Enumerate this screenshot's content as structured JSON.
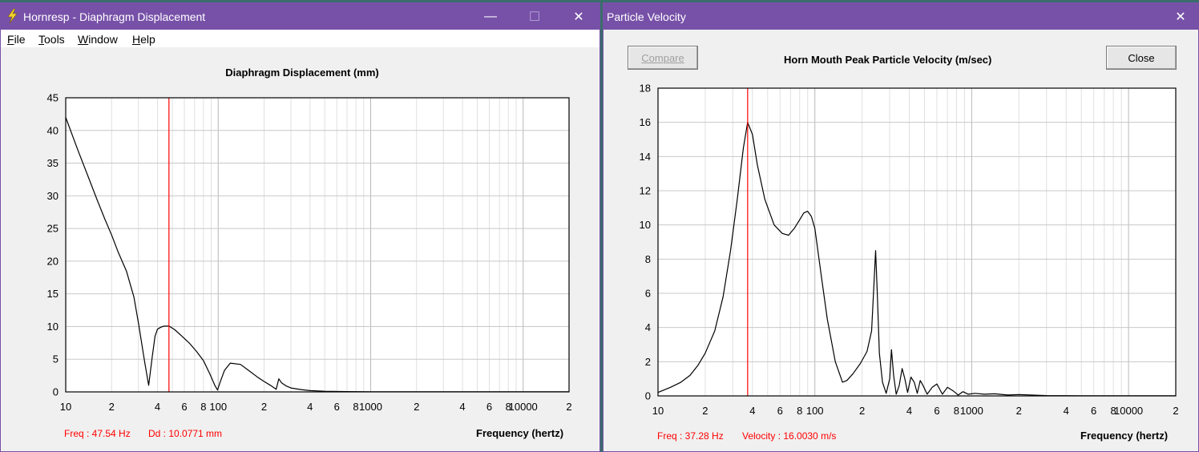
{
  "left_window": {
    "title": "Hornresp - Diaphragm Displacement",
    "controls": {
      "minimize": "—",
      "maximize": "☐",
      "close": "✕"
    },
    "menu": [
      {
        "label": "File",
        "mnemonic": "F",
        "rest": "ile"
      },
      {
        "label": "Tools",
        "mnemonic": "T",
        "rest": "ools"
      },
      {
        "label": "Window",
        "mnemonic": "W",
        "rest": "indow"
      },
      {
        "label": "Help",
        "mnemonic": "H",
        "rest": "elp"
      }
    ],
    "readout": {
      "freq": "Freq : 47.54 Hz",
      "value": "Dd : 10.0771 mm"
    },
    "x_axis_label": "Frequency (hertz)"
  },
  "right_window": {
    "title": "Particle Velocity",
    "controls": {
      "close": "✕"
    },
    "compare_label": "Compare",
    "close_label": "Close",
    "readout": {
      "freq": "Freq : 37.28 Hz",
      "value": "Velocity : 16.0030 m/s"
    },
    "x_axis_label": "Frequency (hertz)"
  },
  "chart_data": [
    {
      "type": "line",
      "title": "Diaphragm Displacement (mm)",
      "xlabel": "Frequency (hertz)",
      "ylabel": "Diaphragm Displacement (mm)",
      "xscale": "log",
      "xlim": [
        10,
        20000
      ],
      "ylim": [
        0,
        45
      ],
      "yticks": [
        "0",
        "5",
        "10",
        "15",
        "20",
        "25",
        "30",
        "35",
        "40",
        "45"
      ],
      "xtick_labels": [
        {
          "f": 10,
          "label": "10"
        },
        {
          "f": 20,
          "label": "2"
        },
        {
          "f": 40,
          "label": "4"
        },
        {
          "f": 60,
          "label": "6"
        },
        {
          "f": 80,
          "label": "8"
        },
        {
          "f": 100,
          "label": "100"
        },
        {
          "f": 200,
          "label": "2"
        },
        {
          "f": 400,
          "label": "4"
        },
        {
          "f": 600,
          "label": "6"
        },
        {
          "f": 800,
          "label": "8"
        },
        {
          "f": 1000,
          "label": "1000"
        },
        {
          "f": 2000,
          "label": "2"
        },
        {
          "f": 4000,
          "label": "4"
        },
        {
          "f": 6000,
          "label": "6"
        },
        {
          "f": 8000,
          "label": "8"
        },
        {
          "f": 10000,
          "label": "10000"
        },
        {
          "f": 20000,
          "label": "2"
        }
      ],
      "marker_freq": 47.54,
      "series": [
        {
          "name": "Dd",
          "x": [
            10,
            12,
            14,
            16,
            18,
            20,
            22,
            25,
            28,
            30,
            33,
            35,
            37,
            38.5,
            40,
            42,
            44,
            47.54,
            52,
            58,
            65,
            72,
            80,
            88,
            95,
            99,
            103,
            110,
            120,
            140,
            160,
            180,
            200,
            220,
            240,
            250,
            260,
            280,
            300,
            350,
            400,
            500,
            700,
            1000,
            2000,
            5000,
            10000,
            20000
          ],
          "y": [
            42,
            37,
            33,
            29.5,
            26.5,
            24,
            21.5,
            18.5,
            14.5,
            10.5,
            4.5,
            1.0,
            5.5,
            8.5,
            9.6,
            9.9,
            10.05,
            10.08,
            9.5,
            8.5,
            7.4,
            6.2,
            4.8,
            2.8,
            1.0,
            0.3,
            1.5,
            3.3,
            4.4,
            4.2,
            3.2,
            2.3,
            1.6,
            1.0,
            0.4,
            2.0,
            1.4,
            0.9,
            0.6,
            0.35,
            0.2,
            0.1,
            0.05,
            0.03,
            0.02,
            0.01,
            0.01,
            0.01
          ]
        }
      ]
    },
    {
      "type": "line",
      "title": "Horn Mouth Peak Particle Velocity (m/sec)",
      "xlabel": "Frequency (hertz)",
      "ylabel": "Horn Mouth Peak Particle Velocity (m/sec)",
      "xscale": "log",
      "xlim": [
        10,
        20000
      ],
      "ylim": [
        0,
        18
      ],
      "yticks": [
        "0",
        "2",
        "4",
        "6",
        "8",
        "10",
        "12",
        "14",
        "16",
        "18"
      ],
      "xtick_labels": [
        {
          "f": 10,
          "label": "10"
        },
        {
          "f": 20,
          "label": "2"
        },
        {
          "f": 40,
          "label": "4"
        },
        {
          "f": 60,
          "label": "6"
        },
        {
          "f": 80,
          "label": "8"
        },
        {
          "f": 100,
          "label": "100"
        },
        {
          "f": 200,
          "label": "2"
        },
        {
          "f": 400,
          "label": "4"
        },
        {
          "f": 600,
          "label": "6"
        },
        {
          "f": 800,
          "label": "8"
        },
        {
          "f": 1000,
          "label": "1000"
        },
        {
          "f": 2000,
          "label": "2"
        },
        {
          "f": 4000,
          "label": "4"
        },
        {
          "f": 6000,
          "label": "6"
        },
        {
          "f": 8000,
          "label": "8"
        },
        {
          "f": 10000,
          "label": "10000"
        },
        {
          "f": 20000,
          "label": "2"
        }
      ],
      "marker_freq": 37.28,
      "series": [
        {
          "name": "Velocity",
          "x": [
            10,
            12,
            14,
            16,
            18,
            20,
            23,
            26,
            29,
            32,
            35,
            37.28,
            40,
            43,
            48,
            55,
            62,
            68,
            74,
            80,
            85,
            90,
            95,
            100,
            110,
            120,
            135,
            150,
            160,
            175,
            195,
            215,
            230,
            238,
            244,
            250,
            258,
            270,
            285,
            300,
            308,
            318,
            330,
            345,
            360,
            375,
            390,
            410,
            430,
            450,
            470,
            490,
            520,
            560,
            600,
            650,
            700,
            760,
            820,
            880,
            950,
            1050,
            1200,
            1400,
            1700,
            2000,
            3000,
            5000,
            10000,
            20000
          ],
          "y": [
            0.2,
            0.5,
            0.8,
            1.2,
            1.8,
            2.5,
            3.8,
            5.8,
            8.5,
            11.5,
            14.5,
            16.0,
            15.3,
            13.5,
            11.5,
            10.0,
            9.5,
            9.4,
            9.8,
            10.3,
            10.7,
            10.8,
            10.5,
            9.8,
            7.0,
            4.5,
            2.0,
            0.8,
            0.9,
            1.3,
            1.9,
            2.6,
            3.8,
            6.5,
            8.5,
            6.0,
            2.5,
            0.8,
            0.15,
            1.0,
            2.7,
            1.2,
            0.1,
            0.6,
            1.6,
            1.0,
            0.2,
            1.1,
            0.8,
            0.15,
            0.9,
            0.6,
            0.1,
            0.5,
            0.7,
            0.1,
            0.5,
            0.3,
            0.05,
            0.25,
            0.1,
            0.15,
            0.1,
            0.12,
            0.05,
            0.08,
            0.02,
            0.01,
            0.01,
            0.01
          ]
        }
      ]
    }
  ]
}
